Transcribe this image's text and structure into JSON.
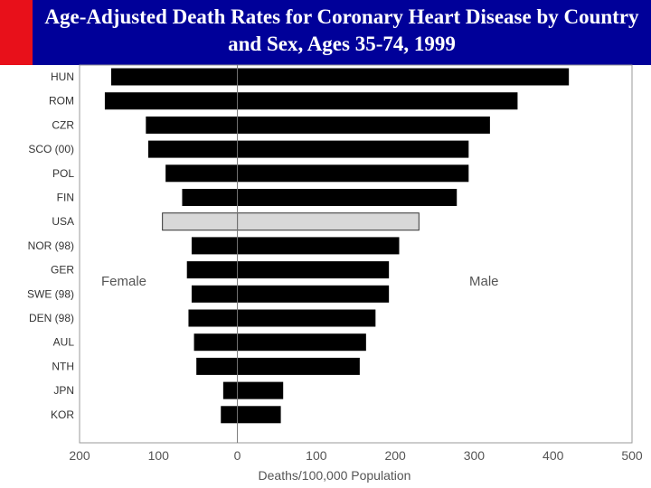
{
  "slide": {
    "title": "Age-Adjusted Death Rates for Coronary Heart Disease by Country and Sex, Ages 35-74, 1999",
    "colors": {
      "header": "#000099",
      "accent": "#e8101a",
      "bar": "#000000",
      "highlight_bar": "#d8d8d8"
    }
  },
  "chart_data": {
    "type": "bar",
    "orientation": "horizontal-diverging",
    "title": "Age-Adjusted Death Rates for Coronary Heart Disease by Country and Sex, Ages 35-74, 1999",
    "xlabel": "Deaths/100,000 Population",
    "side_labels": {
      "left": "Female",
      "right": "Male"
    },
    "x_ticks": [
      "200",
      "100",
      "0",
      "100",
      "200",
      "300",
      "400",
      "500"
    ],
    "xlim": [
      -200,
      500
    ],
    "categories": [
      "HUN",
      "ROM",
      "CZR",
      "SCO (00)",
      "POL",
      "FIN",
      "USA",
      "NOR (98)",
      "GER",
      "SWE (98)",
      "DEN (98)",
      "AUL",
      "NTH",
      "JPN",
      "KOR"
    ],
    "series": [
      {
        "name": "Female",
        "values": [
          160,
          168,
          116,
          113,
          91,
          70,
          95,
          58,
          64,
          58,
          62,
          55,
          52,
          18,
          21
        ]
      },
      {
        "name": "Male",
        "values": [
          420,
          355,
          320,
          293,
          293,
          278,
          230,
          205,
          192,
          192,
          175,
          163,
          155,
          58,
          55
        ]
      }
    ],
    "highlight": "USA",
    "grid": false
  }
}
